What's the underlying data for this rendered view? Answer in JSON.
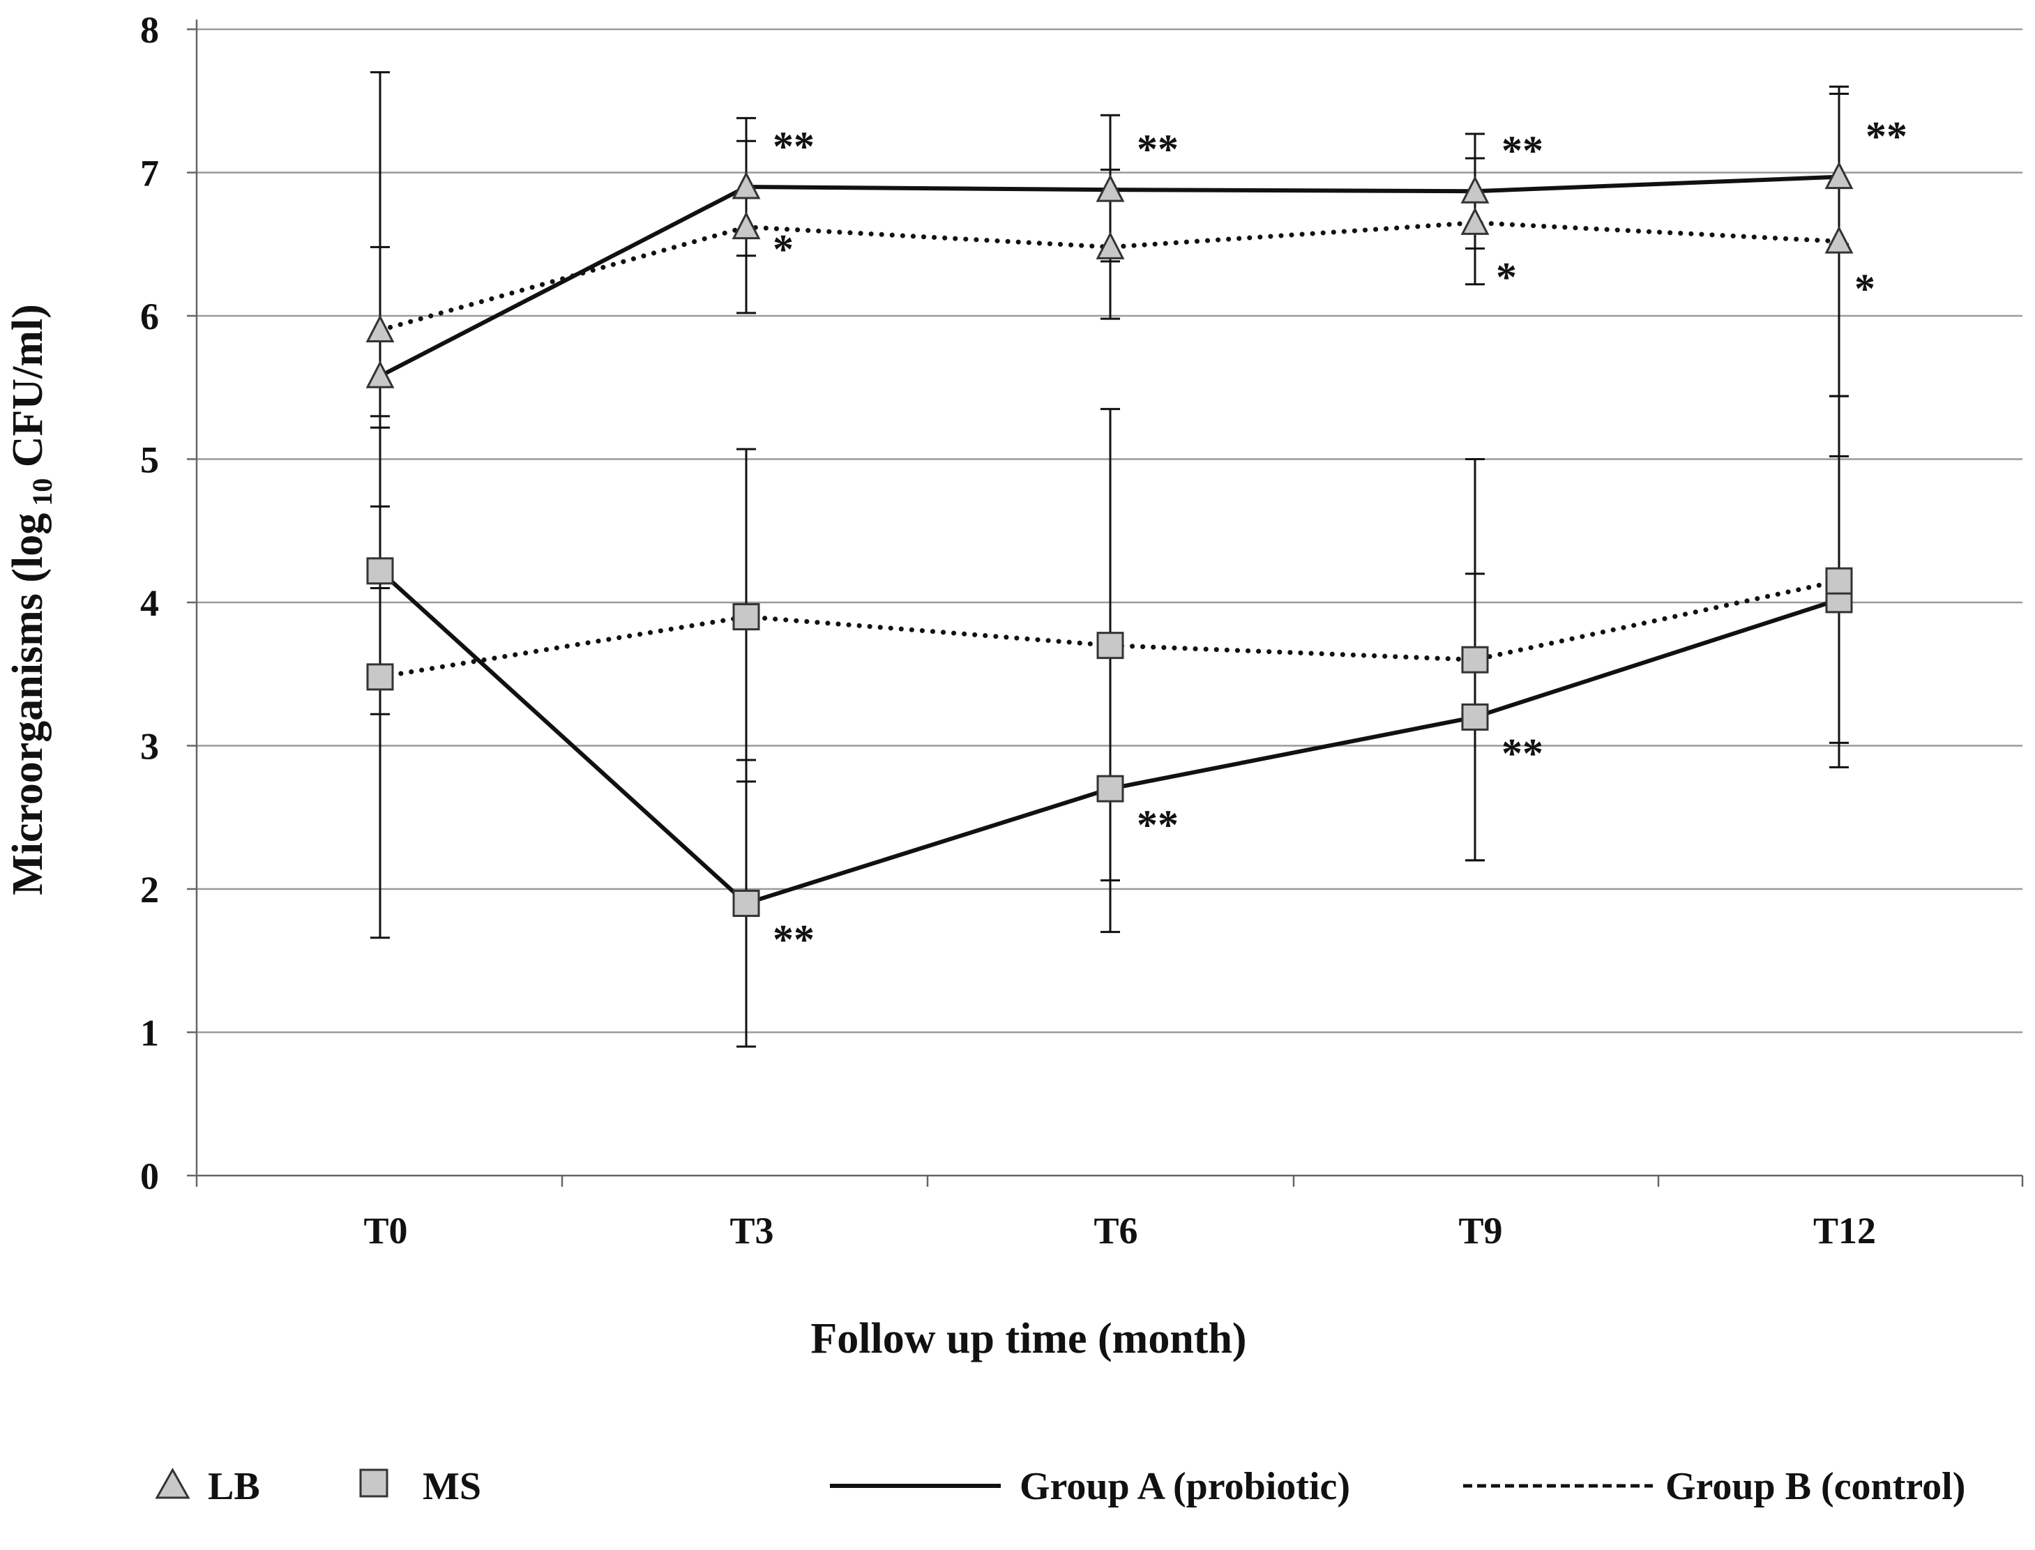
{
  "chart_data": {
    "type": "line",
    "title": "",
    "xlabel": "Follow up time (month)",
    "ylabel": {
      "main": "Microorganisms (log",
      "sub": "10",
      "tail": " CFU/ml)"
    },
    "categories": [
      "T0",
      "T3",
      "T6",
      "T9",
      "T12"
    ],
    "ylim": [
      0,
      8
    ],
    "yticks": [
      "0",
      "1",
      "2",
      "3",
      "4",
      "5",
      "6",
      "7",
      "8"
    ],
    "grid": true,
    "series": [
      {
        "name": "LB Group A (probiotic)",
        "organism": "LB",
        "group": "A",
        "line_style": "solid",
        "marker": "triangle",
        "values": [
          5.58,
          6.9,
          6.88,
          6.87,
          6.97
        ],
        "error": [
          [
            4.67,
            6.48
          ],
          [
            6.42,
            7.38
          ],
          [
            6.38,
            7.4
          ],
          [
            6.47,
            7.27
          ],
          [
            6.5,
            7.6
          ]
        ],
        "annotations": [
          "",
          "**",
          "**",
          "**",
          "**"
        ]
      },
      {
        "name": "LB Group B (control)",
        "organism": "LB",
        "group": "B",
        "line_style": "dotted",
        "marker": "triangle",
        "values": [
          5.9,
          6.62,
          6.48,
          6.65,
          6.52
        ],
        "error": [
          [
            4.1,
            7.7
          ],
          [
            6.02,
            7.22
          ],
          [
            5.98,
            7.02
          ],
          [
            6.22,
            7.1
          ],
          [
            5.44,
            7.55
          ]
        ],
        "annotations": [
          "",
          "*",
          "",
          "*",
          "*"
        ]
      },
      {
        "name": "MS Group A (probiotic)",
        "organism": "MS",
        "group": "A",
        "line_style": "solid",
        "marker": "square",
        "values": [
          4.22,
          1.9,
          2.7,
          3.2,
          4.02
        ],
        "error": [
          [
            3.22,
            5.22
          ],
          [
            0.9,
            2.9
          ],
          [
            1.7,
            3.7
          ],
          [
            2.2,
            4.2
          ],
          [
            3.02,
            5.02
          ]
        ],
        "annotations": [
          "",
          "**",
          "**",
          "**",
          ""
        ]
      },
      {
        "name": "MS Group B (control)",
        "organism": "MS",
        "group": "B",
        "line_style": "dotted",
        "marker": "square",
        "values": [
          3.48,
          3.9,
          3.7,
          3.6,
          4.15
        ],
        "error": [
          [
            1.66,
            5.3
          ],
          [
            2.75,
            5.07
          ],
          [
            2.06,
            5.35
          ],
          [
            2.2,
            5.0
          ],
          [
            2.85,
            5.44
          ]
        ],
        "annotations": [
          "",
          "",
          "",
          "",
          ""
        ]
      }
    ],
    "legend": {
      "position": "bottom",
      "markers": [
        {
          "shape": "triangle",
          "label": "LB"
        },
        {
          "shape": "square",
          "label": "MS"
        }
      ],
      "lines": [
        {
          "style": "solid",
          "label": "Group A (probiotic)"
        },
        {
          "style": "dashed",
          "label": "Group B (control)"
        }
      ]
    }
  }
}
